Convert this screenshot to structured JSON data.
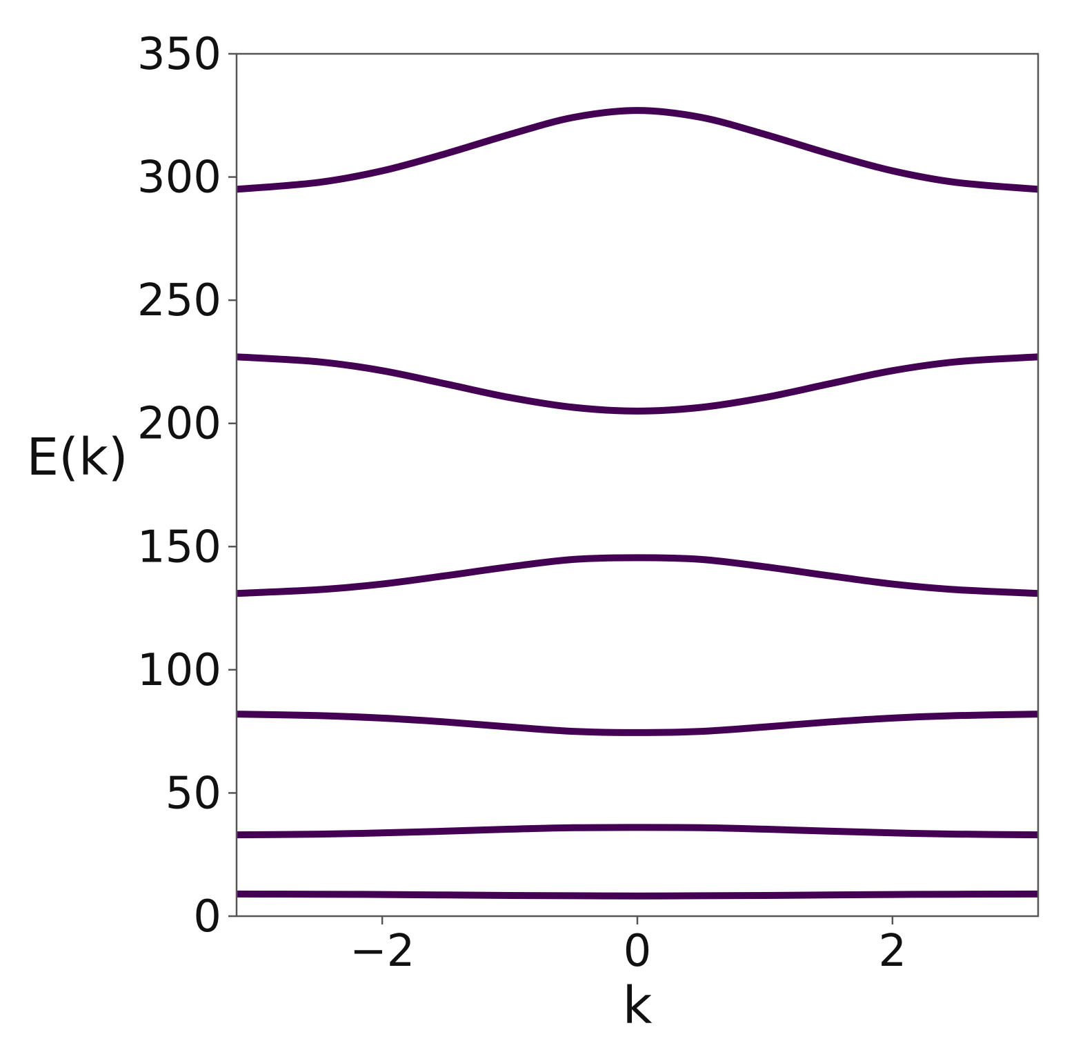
{
  "chart_data": {
    "type": "line",
    "title": "",
    "xlabel": "k",
    "ylabel": "E(k)",
    "xlim": [
      -3.1416,
      3.1416
    ],
    "ylim": [
      0,
      350
    ],
    "x_ticks": [
      {
        "value": -2,
        "label": "−2"
      },
      {
        "value": 0,
        "label": "0"
      },
      {
        "value": 2,
        "label": "2"
      }
    ],
    "y_ticks": [
      {
        "value": 0,
        "label": "0"
      },
      {
        "value": 50,
        "label": "50"
      },
      {
        "value": 100,
        "label": "100"
      },
      {
        "value": 150,
        "label": "150"
      },
      {
        "value": 200,
        "label": "200"
      },
      {
        "value": 250,
        "label": "250"
      },
      {
        "value": 300,
        "label": "300"
      },
      {
        "value": 350,
        "label": "350"
      }
    ],
    "grid": false,
    "legend": false,
    "line_color": "#440154",
    "x": [
      -3.1416,
      -2.5,
      -2.0,
      -1.5,
      -1.0,
      -0.5,
      0,
      0.5,
      1.0,
      1.5,
      2.0,
      2.5,
      3.1416
    ],
    "series": [
      {
        "values": [
          9.0,
          8.9,
          8.8,
          8.6,
          8.4,
          8.3,
          8.2,
          8.3,
          8.4,
          8.6,
          8.8,
          8.9,
          9.0
        ]
      },
      {
        "values": [
          33.0,
          33.3,
          33.8,
          34.5,
          35.3,
          35.9,
          36.0,
          35.9,
          35.3,
          34.5,
          33.8,
          33.3,
          33.0
        ]
      },
      {
        "values": [
          82.0,
          81.4,
          80.4,
          78.8,
          76.8,
          75.0,
          74.5,
          75.0,
          76.8,
          78.8,
          80.4,
          81.4,
          82.0
        ]
      },
      {
        "values": [
          131.0,
          132.5,
          134.8,
          138.2,
          141.8,
          144.8,
          145.5,
          144.8,
          141.8,
          138.2,
          134.8,
          132.5,
          131.0
        ]
      },
      {
        "values": [
          227.0,
          225.0,
          221.4,
          216.0,
          210.5,
          206.5,
          205.0,
          206.5,
          210.5,
          216.0,
          221.4,
          225.0,
          227.0
        ]
      },
      {
        "values": [
          295.0,
          297.8,
          302.5,
          309.5,
          317.3,
          324.2,
          327.0,
          324.2,
          317.3,
          309.5,
          302.5,
          297.8,
          295.0
        ]
      }
    ]
  }
}
